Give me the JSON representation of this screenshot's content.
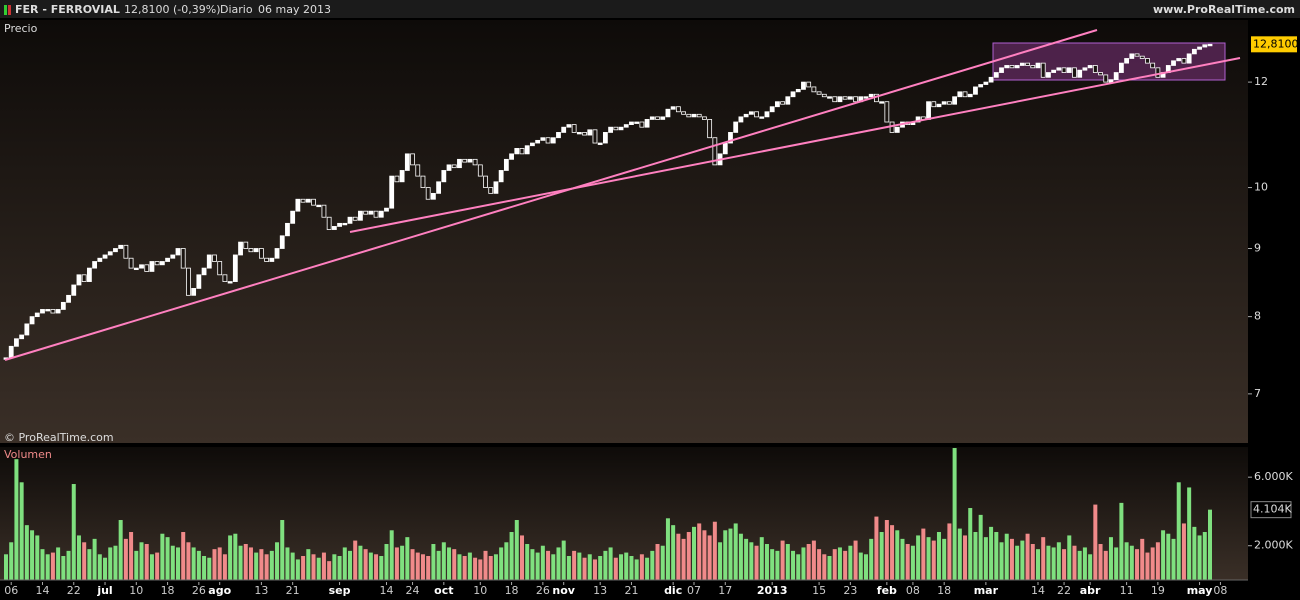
{
  "header": {
    "symbol": "FER - FERROVIAL",
    "quote": "12,8100 (-0,39%)",
    "period": "Diario",
    "date": "06 may 2013",
    "site": "www.ProRealTime.com"
  },
  "chart_data": [
    {
      "type": "candlestick",
      "title": "Precio",
      "watermark": "© ProRealTime.com",
      "log_scale": true,
      "ylim": [
        6.43,
        13.36
      ],
      "yticks": [
        7,
        8,
        9,
        10,
        12
      ],
      "last_label": {
        "value": 12.81,
        "label": "12,8100"
      },
      "up_color": "#ffffff",
      "down_color": "#1a1410",
      "xticks": [
        {
          "value": 1,
          "label": "06"
        },
        {
          "value": 7,
          "label": "14"
        },
        {
          "value": 13,
          "label": "22"
        },
        {
          "value": 19,
          "label": "jul"
        },
        {
          "value": 25,
          "label": "10"
        },
        {
          "value": 31,
          "label": "18"
        },
        {
          "value": 37,
          "label": "26"
        },
        {
          "value": 41,
          "label": "ago"
        },
        {
          "value": 49,
          "label": "13"
        },
        {
          "value": 55,
          "label": "21"
        },
        {
          "value": 64,
          "label": "sep"
        },
        {
          "value": 73,
          "label": "14"
        },
        {
          "value": 78,
          "label": "24"
        },
        {
          "value": 84,
          "label": "oct"
        },
        {
          "value": 91,
          "label": "10"
        },
        {
          "value": 97,
          "label": "18"
        },
        {
          "value": 103,
          "label": "26"
        },
        {
          "value": 107,
          "label": "nov"
        },
        {
          "value": 114,
          "label": "13"
        },
        {
          "value": 120,
          "label": "21"
        },
        {
          "value": 128,
          "label": "dic"
        },
        {
          "value": 132,
          "label": "07"
        },
        {
          "value": 138,
          "label": "17"
        },
        {
          "value": 147,
          "label": "2013"
        },
        {
          "value": 156,
          "label": "15"
        },
        {
          "value": 162,
          "label": "23"
        },
        {
          "value": 169,
          "label": "feb"
        },
        {
          "value": 174,
          "label": "08"
        },
        {
          "value": 180,
          "label": "18"
        },
        {
          "value": 188,
          "label": "mar"
        },
        {
          "value": 198,
          "label": "14"
        },
        {
          "value": 203,
          "label": "22"
        },
        {
          "value": 208,
          "label": "abr"
        },
        {
          "value": 215,
          "label": "11"
        },
        {
          "value": 221,
          "label": "19"
        },
        {
          "value": 229,
          "label": "may"
        },
        {
          "value": 233,
          "label": "08"
        }
      ],
      "close": [
        7.45,
        7.6,
        7.7,
        7.75,
        7.9,
        8.0,
        8.05,
        8.1,
        8.1,
        8.05,
        8.1,
        8.2,
        8.3,
        8.45,
        8.6,
        8.5,
        8.7,
        8.8,
        8.85,
        8.9,
        8.95,
        9.0,
        9.05,
        8.85,
        8.7,
        8.7,
        8.75,
        8.65,
        8.8,
        8.75,
        8.8,
        8.85,
        8.9,
        9.0,
        8.7,
        8.3,
        8.4,
        8.6,
        8.7,
        8.9,
        8.8,
        8.6,
        8.5,
        8.5,
        8.9,
        9.1,
        9.0,
        8.95,
        9.0,
        8.85,
        8.8,
        8.85,
        9.0,
        9.2,
        9.4,
        9.6,
        9.8,
        9.75,
        9.8,
        9.7,
        9.7,
        9.5,
        9.3,
        9.35,
        9.4,
        9.4,
        9.5,
        9.45,
        9.6,
        9.55,
        9.6,
        9.5,
        9.6,
        9.65,
        10.2,
        10.1,
        10.3,
        10.6,
        10.4,
        10.2,
        10.0,
        9.8,
        9.9,
        10.1,
        10.3,
        10.4,
        10.35,
        10.5,
        10.45,
        10.5,
        10.4,
        10.2,
        10.0,
        9.9,
        10.1,
        10.3,
        10.5,
        10.6,
        10.7,
        10.6,
        10.75,
        10.8,
        10.85,
        10.9,
        10.8,
        10.9,
        11.0,
        11.1,
        11.15,
        11.0,
        11.0,
        10.95,
        11.05,
        10.8,
        10.8,
        11.0,
        11.1,
        11.05,
        11.1,
        11.15,
        11.2,
        11.2,
        11.1,
        11.25,
        11.3,
        11.25,
        11.3,
        11.45,
        11.5,
        11.4,
        11.35,
        11.3,
        11.35,
        11.3,
        11.25,
        10.9,
        10.4,
        10.6,
        10.8,
        11.0,
        11.2,
        11.3,
        11.35,
        11.4,
        11.3,
        11.3,
        11.4,
        11.5,
        11.6,
        11.55,
        11.7,
        11.8,
        11.85,
        12.0,
        11.9,
        11.8,
        11.75,
        11.7,
        11.7,
        11.6,
        11.7,
        11.65,
        11.7,
        11.6,
        11.7,
        11.7,
        11.75,
        11.6,
        11.6,
        11.2,
        11.0,
        11.1,
        11.2,
        11.15,
        11.2,
        11.3,
        11.25,
        11.6,
        11.5,
        11.55,
        11.6,
        11.55,
        11.7,
        11.8,
        11.7,
        11.75,
        11.9,
        11.95,
        12.0,
        12.1,
        12.2,
        12.3,
        12.35,
        12.3,
        12.35,
        12.4,
        12.35,
        12.3,
        12.4,
        12.1,
        12.2,
        12.25,
        12.3,
        12.2,
        12.3,
        12.1,
        12.25,
        12.3,
        12.35,
        12.2,
        12.15,
        12.0,
        12.05,
        12.2,
        12.4,
        12.5,
        12.6,
        12.55,
        12.5,
        12.4,
        12.3,
        12.1,
        12.2,
        12.35,
        12.45,
        12.5,
        12.4,
        12.6,
        12.7,
        12.75,
        12.8,
        12.81
      ]
    },
    {
      "type": "bar",
      "title": "Volumen",
      "ylim": [
        0,
        7760
      ],
      "yticks": [
        {
          "value": 2000,
          "label": "2.000K"
        },
        {
          "value": 6000,
          "label": "6.000K"
        }
      ],
      "last_label": {
        "value": 4104,
        "label": "4.104K"
      },
      "up_color": "#7fe07f",
      "down_color": "#f08a8a",
      "values": [
        1500,
        2200,
        7050,
        5700,
        3200,
        2900,
        2600,
        1800,
        1500,
        1600,
        1900,
        1400,
        1700,
        5600,
        2600,
        2200,
        1800,
        2400,
        1500,
        1300,
        1900,
        2000,
        3500,
        2400,
        2800,
        1700,
        2200,
        2100,
        1500,
        1600,
        2700,
        2500,
        2000,
        1900,
        2800,
        2200,
        1900,
        1700,
        1400,
        1300,
        1800,
        1900,
        1500,
        2600,
        2700,
        2000,
        2100,
        1900,
        1600,
        1800,
        1500,
        1700,
        2200,
        3500,
        1900,
        1600,
        1200,
        1400,
        1800,
        1500,
        1300,
        1600,
        1100,
        1500,
        1400,
        1900,
        1700,
        2300,
        2000,
        1800,
        1600,
        1500,
        1400,
        2100,
        2900,
        1900,
        2000,
        2500,
        1800,
        1600,
        1500,
        1400,
        2100,
        1700,
        2200,
        1900,
        1800,
        1500,
        1400,
        1600,
        1300,
        1200,
        1700,
        1400,
        1500,
        1900,
        2200,
        2800,
        3500,
        2600,
        2100,
        1800,
        1600,
        2000,
        1700,
        1500,
        1900,
        2300,
        1400,
        1700,
        1600,
        1300,
        1500,
        1200,
        1400,
        1700,
        1900,
        1300,
        1500,
        1600,
        1400,
        1200,
        1500,
        1300,
        1700,
        2100,
        2000,
        3600,
        3200,
        2700,
        2400,
        2800,
        3100,
        3300,
        2900,
        2600,
        3400,
        2200,
        2900,
        3000,
        3300,
        2700,
        2400,
        2200,
        2000,
        2500,
        2100,
        1800,
        1700,
        2300,
        2100,
        1700,
        1500,
        1900,
        2100,
        2300,
        1800,
        1500,
        1400,
        1800,
        1900,
        1700,
        2000,
        2300,
        1600,
        1500,
        2400,
        3700,
        2800,
        3500,
        3200,
        2900,
        2400,
        2100,
        2000,
        2600,
        3000,
        2500,
        2300,
        2800,
        2400,
        3300,
        7700,
        3000,
        2600,
        4200,
        2800,
        3800,
        2500,
        3100,
        2800,
        2200,
        2700,
        2400,
        2000,
        2300,
        2700,
        2100,
        1800,
        2500,
        2000,
        1900,
        2200,
        1800,
        2600,
        2000,
        1700,
        1900,
        1500,
        4400,
        2100,
        1700,
        2500,
        1900,
        4500,
        2200,
        2000,
        1800,
        2400,
        1600,
        1900,
        2200,
        2900,
        2700,
        2400,
        5700,
        3300,
        5400,
        3100,
        2600,
        2800,
        4104
      ]
    }
  ]
}
